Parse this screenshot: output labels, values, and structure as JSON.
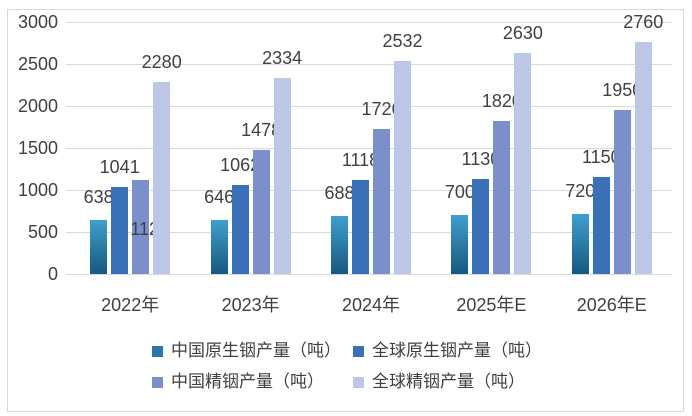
{
  "chart_data": {
    "type": "bar",
    "title": "",
    "categories": [
      "2022年",
      "2023年",
      "2024年",
      "2025年E",
      "2026年E"
    ],
    "series": [
      {
        "name": "中国原生铟产量（吨）",
        "values": [
          638,
          646,
          688,
          700,
          720
        ],
        "color": "#2e7cb0",
        "gradient_top": "#3f9fce",
        "gradient_bottom": "#17587f",
        "swatch_color": "#2b76ae"
      },
      {
        "name": "全球原生铟产量（吨）",
        "values": [
          1041,
          1062,
          1118,
          1130,
          1150
        ],
        "color": "#3a70b8",
        "swatch_color": "#3a70b8"
      },
      {
        "name": "中国精铟产量（吨）",
        "values": [
          1122,
          1478,
          1726,
          1820,
          1950
        ],
        "color": "#7b8fcb",
        "swatch_color": "#7b8fcb"
      },
      {
        "name": "全球精铟产量（吨）",
        "values": [
          2280,
          2334,
          2532,
          2630,
          2760
        ],
        "color": "#bcc6e6",
        "swatch_color": "#bcc6e6"
      }
    ],
    "xlabel": "",
    "ylabel": "",
    "ylim": [
      0,
      3000
    ],
    "y_ticks": [
      0,
      500,
      1000,
      1500,
      2000,
      2500,
      3000
    ],
    "grid": true,
    "gridline_color": "#d9d9d9",
    "frame_border_color": "#d9d9d9",
    "text_color": "#404040",
    "legend_position": "bottom-two-rows",
    "data_labels": true,
    "label_overrides": [
      {
        "series": 2,
        "category": 0,
        "dx": 9,
        "dy": 69
      }
    ]
  }
}
